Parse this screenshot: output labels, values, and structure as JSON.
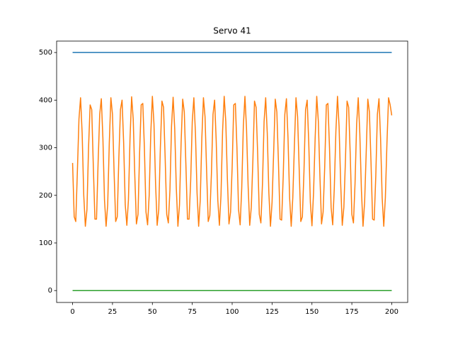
{
  "chart_data": {
    "type": "line",
    "title": "Servo 41",
    "x": [
      0,
      1,
      2,
      3,
      4,
      5,
      6,
      7,
      8,
      9,
      10,
      11,
      12,
      13,
      14,
      15,
      16,
      17,
      18,
      19,
      20,
      21,
      22,
      23,
      24,
      25,
      26,
      27,
      28,
      29,
      30,
      31,
      32,
      33,
      34,
      35,
      36,
      37,
      38,
      39,
      40,
      41,
      42,
      43,
      44,
      45,
      46,
      47,
      48,
      49,
      50,
      51,
      52,
      53,
      54,
      55,
      56,
      57,
      58,
      59,
      60,
      61,
      62,
      63,
      64,
      65,
      66,
      67,
      68,
      69,
      70,
      71,
      72,
      73,
      74,
      75,
      76,
      77,
      78,
      79,
      80,
      81,
      82,
      83,
      84,
      85,
      86,
      87,
      88,
      89,
      90,
      91,
      92,
      93,
      94,
      95,
      96,
      97,
      98,
      99,
      100,
      101,
      102,
      103,
      104,
      105,
      106,
      107,
      108,
      109,
      110,
      111,
      112,
      113,
      114,
      115,
      116,
      117,
      118,
      119,
      120,
      121,
      122,
      123,
      124,
      125,
      126,
      127,
      128,
      129,
      130,
      131,
      132,
      133,
      134,
      135,
      136,
      137,
      138,
      139,
      140,
      141,
      142,
      143,
      144,
      145,
      146,
      147,
      148,
      149,
      150,
      151,
      152,
      153,
      154,
      155,
      156,
      157,
      158,
      159,
      160,
      161,
      162,
      163,
      164,
      165,
      166,
      167,
      168,
      169,
      170,
      171,
      172,
      173,
      174,
      175,
      176,
      177,
      178,
      179,
      180,
      181,
      182,
      183,
      184,
      185,
      186,
      187,
      188,
      189,
      190,
      191,
      192,
      193,
      194,
      195,
      196,
      197,
      198,
      199,
      200
    ],
    "series": [
      {
        "color": "#1f77b4",
        "values": [
          500,
          500,
          500,
          500,
          500,
          500,
          500,
          500,
          500,
          500,
          500,
          500,
          500,
          500,
          500,
          500,
          500,
          500,
          500,
          500,
          500,
          500,
          500,
          500,
          500,
          500,
          500,
          500,
          500,
          500,
          500,
          500,
          500,
          500,
          500,
          500,
          500,
          500,
          500,
          500,
          500,
          500,
          500,
          500,
          500,
          500,
          500,
          500,
          500,
          500,
          500,
          500,
          500,
          500,
          500,
          500,
          500,
          500,
          500,
          500,
          500,
          500,
          500,
          500,
          500,
          500,
          500,
          500,
          500,
          500,
          500,
          500,
          500,
          500,
          500,
          500,
          500,
          500,
          500,
          500,
          500,
          500,
          500,
          500,
          500,
          500,
          500,
          500,
          500,
          500,
          500,
          500,
          500,
          500,
          500,
          500,
          500,
          500,
          500,
          500,
          500,
          500,
          500,
          500,
          500,
          500,
          500,
          500,
          500,
          500,
          500,
          500,
          500,
          500,
          500,
          500,
          500,
          500,
          500,
          500,
          500,
          500,
          500,
          500,
          500,
          500,
          500,
          500,
          500,
          500,
          500,
          500,
          500,
          500,
          500,
          500,
          500,
          500,
          500,
          500,
          500,
          500,
          500,
          500,
          500,
          500,
          500,
          500,
          500,
          500,
          500,
          500,
          500,
          500,
          500,
          500,
          500,
          500,
          500,
          500,
          500,
          500,
          500,
          500,
          500,
          500,
          500,
          500,
          500,
          500,
          500,
          500,
          500,
          500,
          500,
          500,
          500,
          500,
          500,
          500,
          500,
          500,
          500,
          500,
          500,
          500,
          500,
          500,
          500,
          500,
          500,
          500,
          500,
          500,
          500,
          500,
          500,
          500,
          500,
          500,
          500
        ]
      },
      {
        "color": "#ff7f0e",
        "values": [
          268,
          155,
          145,
          250,
          360,
          405,
          330,
          200,
          135,
          170,
          300,
          390,
          380,
          260,
          150,
          150,
          270,
          370,
          403,
          320,
          190,
          135,
          180,
          310,
          405,
          370,
          250,
          145,
          155,
          280,
          380,
          400,
          310,
          180,
          137,
          190,
          320,
          407,
          360,
          240,
          140,
          160,
          290,
          390,
          393,
          300,
          165,
          138,
          200,
          330,
          408,
          350,
          225,
          137,
          170,
          300,
          398,
          385,
          280,
          160,
          142,
          210,
          345,
          406,
          340,
          215,
          135,
          180,
          310,
          402,
          375,
          265,
          150,
          150,
          230,
          355,
          405,
          330,
          205,
          135,
          190,
          320,
          405,
          365,
          250,
          145,
          158,
          245,
          370,
          400,
          315,
          190,
          137,
          200,
          335,
          408,
          355,
          235,
          140,
          165,
          260,
          390,
          393,
          300,
          170,
          138,
          215,
          345,
          408,
          340,
          220,
          137,
          175,
          275,
          398,
          385,
          285,
          160,
          142,
          225,
          355,
          405,
          330,
          205,
          135,
          185,
          290,
          402,
          375,
          270,
          150,
          148,
          240,
          370,
          403,
          320,
          195,
          135,
          195,
          305,
          405,
          365,
          255,
          145,
          155,
          250,
          380,
          400,
          310,
          185,
          136,
          205,
          320,
          408,
          355,
          240,
          140,
          165,
          260,
          390,
          393,
          300,
          175,
          138,
          215,
          335,
          408,
          345,
          225,
          137,
          175,
          275,
          398,
          385,
          285,
          160,
          142,
          225,
          350,
          405,
          330,
          210,
          135,
          185,
          290,
          402,
          375,
          270,
          150,
          148,
          240,
          370,
          403,
          320,
          195,
          135,
          195,
          310,
          405,
          390,
          368
        ]
      },
      {
        "color": "#2ca02c",
        "values": [
          0,
          0,
          0,
          0,
          0,
          0,
          0,
          0,
          0,
          0,
          0,
          0,
          0,
          0,
          0,
          0,
          0,
          0,
          0,
          0,
          0,
          0,
          0,
          0,
          0,
          0,
          0,
          0,
          0,
          0,
          0,
          0,
          0,
          0,
          0,
          0,
          0,
          0,
          0,
          0,
          0,
          0,
          0,
          0,
          0,
          0,
          0,
          0,
          0,
          0,
          0,
          0,
          0,
          0,
          0,
          0,
          0,
          0,
          0,
          0,
          0,
          0,
          0,
          0,
          0,
          0,
          0,
          0,
          0,
          0,
          0,
          0,
          0,
          0,
          0,
          0,
          0,
          0,
          0,
          0,
          0,
          0,
          0,
          0,
          0,
          0,
          0,
          0,
          0,
          0,
          0,
          0,
          0,
          0,
          0,
          0,
          0,
          0,
          0,
          0,
          0,
          0,
          0,
          0,
          0,
          0,
          0,
          0,
          0,
          0,
          0,
          0,
          0,
          0,
          0,
          0,
          0,
          0,
          0,
          0,
          0,
          0,
          0,
          0,
          0,
          0,
          0,
          0,
          0,
          0,
          0,
          0,
          0,
          0,
          0,
          0,
          0,
          0,
          0,
          0,
          0,
          0,
          0,
          0,
          0,
          0,
          0,
          0,
          0,
          0,
          0,
          0,
          0,
          0,
          0,
          0,
          0,
          0,
          0,
          0,
          0,
          0,
          0,
          0,
          0,
          0,
          0,
          0,
          0,
          0,
          0,
          0,
          0,
          0,
          0,
          0,
          0,
          0,
          0,
          0,
          0,
          0,
          0,
          0,
          0,
          0,
          0,
          0,
          0,
          0,
          0,
          0,
          0,
          0,
          0,
          0,
          0,
          0,
          0,
          0,
          0
        ]
      }
    ],
    "xlim": [
      -10,
      210
    ],
    "xticks": [
      0,
      25,
      50,
      75,
      100,
      125,
      150,
      175,
      200
    ],
    "ylim": [
      -25,
      524
    ],
    "yticks": [
      0,
      100,
      200,
      300,
      400,
      500
    ]
  }
}
